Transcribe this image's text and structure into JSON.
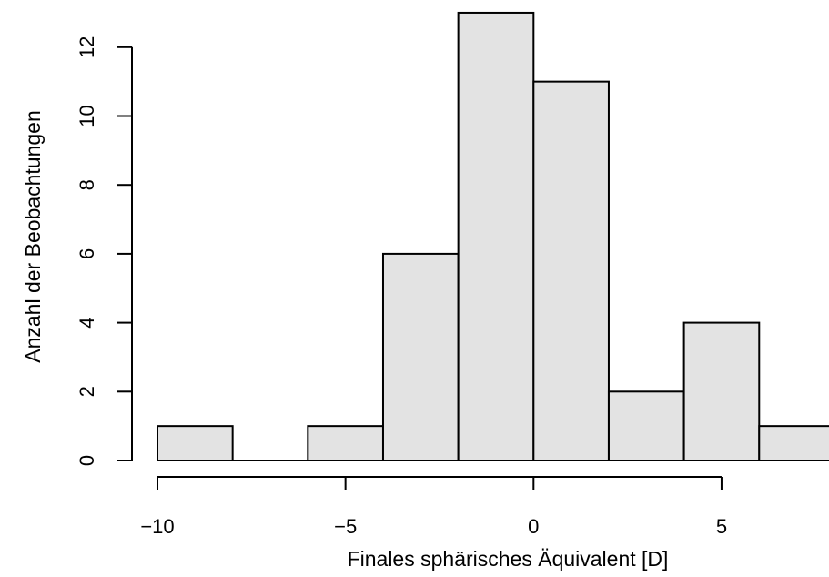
{
  "chart_data": {
    "type": "histogram",
    "xlabel": "Finales sphärisches Äquivalent [D]",
    "ylabel": "Anzahl der Beobachtungen",
    "bin_edges": [
      -10,
      -8,
      -6,
      -4,
      -2,
      0,
      2,
      4,
      6,
      8
    ],
    "counts": [
      1,
      0,
      1,
      6,
      13,
      11,
      2,
      4,
      1
    ],
    "x_ticks": [
      -10,
      -5,
      0,
      5
    ],
    "x_tick_labels": [
      "−10",
      "−5",
      "0",
      "5"
    ],
    "y_ticks": [
      0,
      2,
      4,
      6,
      8,
      10,
      12
    ],
    "y_tick_labels": [
      "0",
      "2",
      "4",
      "6",
      "8",
      "10",
      "12"
    ],
    "xlim": [
      -10,
      8
    ],
    "ylim": [
      0,
      13
    ],
    "bar_fill": "#e3e3e3",
    "bar_stroke": "#000000",
    "grid": false
  }
}
